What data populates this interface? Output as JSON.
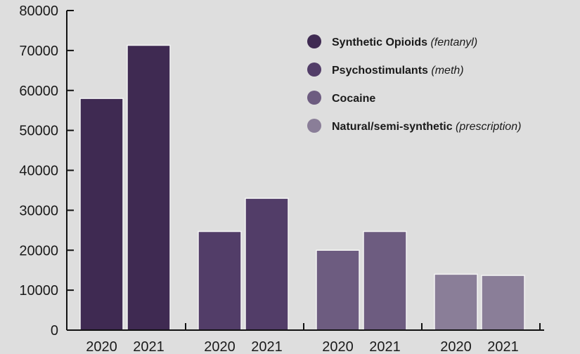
{
  "chart_data": {
    "type": "bar",
    "categories": [
      "Synthetic Opioids",
      "Psychostimulants",
      "Cocaine",
      "Natural/semi-synthetic"
    ],
    "x_tick_labels": [
      "2020",
      "2021"
    ],
    "series": [
      {
        "name": "2020",
        "values": [
          58000,
          24700,
          20000,
          14000
        ]
      },
      {
        "name": "2021",
        "values": [
          71300,
          33000,
          24700,
          13700
        ]
      }
    ],
    "category_colors": [
      "#3f2a52",
      "#523d68",
      "#6d5c80",
      "#8a7e98"
    ],
    "ylim": [
      0,
      80000
    ],
    "y_ticks": [
      0,
      10000,
      20000,
      30000,
      40000,
      50000,
      60000,
      70000,
      80000
    ],
    "title": "",
    "xlabel": "",
    "ylabel": "",
    "legend": {
      "position": "top-right",
      "items": [
        {
          "label": "Synthetic Opioids",
          "note": "(fentanyl)"
        },
        {
          "label": "Psychostimulants",
          "note": "(meth)"
        },
        {
          "label": "Cocaine",
          "note": ""
        },
        {
          "label": "Natural/semi-synthetic",
          "note": "(prescription)"
        }
      ]
    },
    "grid": false
  }
}
